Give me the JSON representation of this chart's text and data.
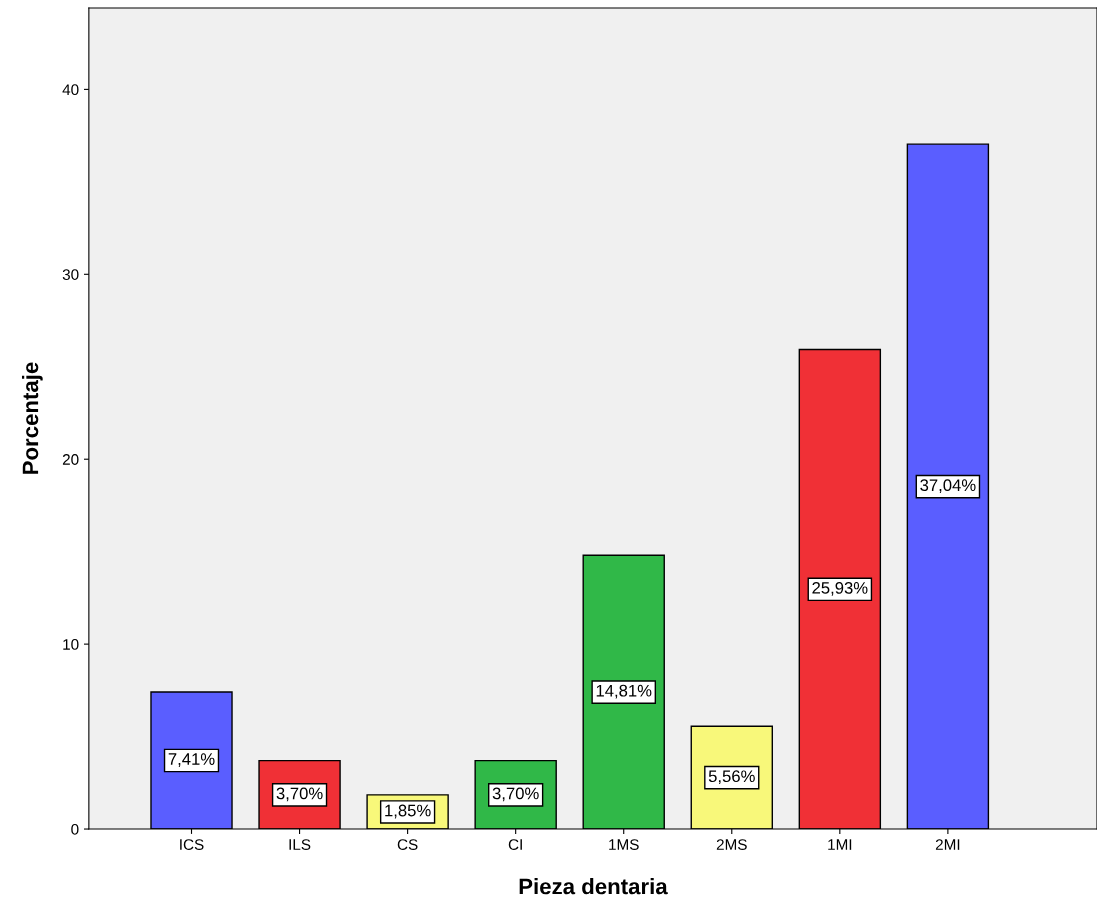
{
  "chart_data": {
    "type": "bar",
    "xlabel": "Pieza dentaria",
    "ylabel": "Porcentaje",
    "categories": [
      "ICS",
      "ILS",
      "CS",
      "CI",
      "1MS",
      "2MS",
      "1MI",
      "2MI"
    ],
    "values": [
      7.41,
      3.7,
      1.85,
      3.7,
      14.81,
      5.56,
      25.93,
      37.04
    ],
    "colors": [
      "#5a5eff",
      "#f03036",
      "#f8f87a",
      "#30b848",
      "#30b848",
      "#f8f87a",
      "#f03036",
      "#5a5eff"
    ],
    "value_labels": [
      "7,41%",
      "3,70%",
      "1,85%",
      "3,70%",
      "14,81%",
      "5,56%",
      "25,93%",
      "37,04%"
    ],
    "ylim": [
      0,
      44.4
    ],
    "yticks": [
      0,
      10,
      20,
      30,
      40
    ],
    "grid": false,
    "legend": false
  }
}
